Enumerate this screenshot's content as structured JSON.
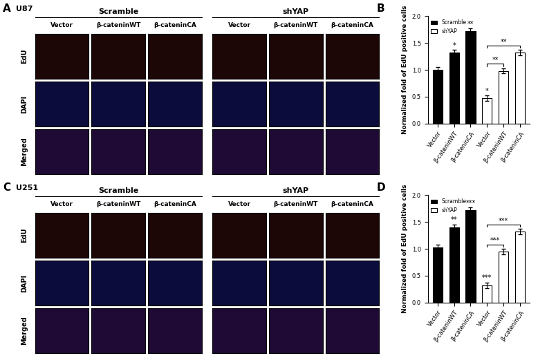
{
  "image_panels": [
    {
      "panel": "A",
      "cell_line": "U87",
      "groups": [
        "Scramble",
        "shYAP"
      ],
      "columns": [
        "Vector",
        "β-cateninWT",
        "β-cateninCA"
      ],
      "rows": [
        "EdU",
        "DAPI",
        "Merged"
      ]
    },
    {
      "panel": "C",
      "cell_line": "U251",
      "groups": [
        "Scramble",
        "shYAP"
      ],
      "columns": [
        "Vector",
        "β-cateninWT",
        "β-cateninCA"
      ],
      "rows": [
        "EdU",
        "DAPI",
        "Merged"
      ]
    }
  ],
  "chart_data": [
    {
      "type": "bar",
      "panel": "B",
      "categories": [
        "Vector",
        "β-cateninWT",
        "β-cateninCA",
        "Vector",
        "β-cateninWT",
        "β-cateninCA"
      ],
      "y_label": "Normalized fold of EdU positive cells",
      "series": [
        {
          "name": "Scramble",
          "color": "#000000",
          "values": [
            1.0,
            1.32,
            1.72,
            null,
            null,
            null
          ],
          "errors": [
            0.05,
            0.05,
            0.05,
            null,
            null,
            null
          ]
        },
        {
          "name": "shYAP",
          "color": "#ffffff",
          "values": [
            null,
            null,
            null,
            0.47,
            0.98,
            1.32
          ],
          "errors": [
            null,
            null,
            null,
            0.05,
            0.05,
            0.05
          ]
        }
      ],
      "significance": [
        null,
        "*",
        "**",
        "*",
        null,
        null
      ],
      "comparisons": [
        {
          "from": 3,
          "to": 4,
          "label": "**"
        },
        {
          "from": 3,
          "to": 5,
          "label": "**"
        }
      ],
      "ylim": [
        0,
        2.0
      ],
      "yticks": [
        {
          "value": 0,
          "label": "0.0"
        },
        {
          "value": 0.5,
          "label": "0.5"
        },
        {
          "value": 1.0,
          "label": "1.0"
        },
        {
          "value": 1.5,
          "label": "1.5"
        },
        {
          "value": 2.0,
          "label": "2.0"
        }
      ],
      "legend": "upper left"
    },
    {
      "type": "bar",
      "panel": "D",
      "categories": [
        "Vector",
        "β-cateninWT",
        "β-cateninCA",
        "Vector",
        "β-cateninWT",
        "β-cateninCA"
      ],
      "y_label": "Normalized fold of EdU positive cells",
      "series": [
        {
          "name": "Scramble",
          "color": "#000000",
          "values": [
            1.02,
            1.4,
            1.72,
            null,
            null,
            null
          ],
          "errors": [
            0.06,
            0.05,
            0.05,
            null,
            null,
            null
          ]
        },
        {
          "name": "shYAP",
          "color": "#ffffff",
          "values": [
            null,
            null,
            null,
            0.32,
            0.95,
            1.32
          ],
          "errors": [
            null,
            null,
            null,
            0.05,
            0.05,
            0.05
          ]
        }
      ],
      "significance": [
        null,
        "**",
        "***",
        "***",
        null,
        null
      ],
      "comparisons": [
        {
          "from": 3,
          "to": 4,
          "label": "***"
        },
        {
          "from": 3,
          "to": 5,
          "label": "***"
        }
      ],
      "ylim": [
        0,
        2.0
      ],
      "yticks": [
        {
          "value": 0,
          "label": "0.0"
        },
        {
          "value": 0.5,
          "label": "0.5"
        },
        {
          "value": 1.0,
          "label": "1.0"
        },
        {
          "value": 1.5,
          "label": "1.5"
        },
        {
          "value": 2.0,
          "label": "2.0"
        }
      ],
      "legend": "upper left"
    }
  ]
}
